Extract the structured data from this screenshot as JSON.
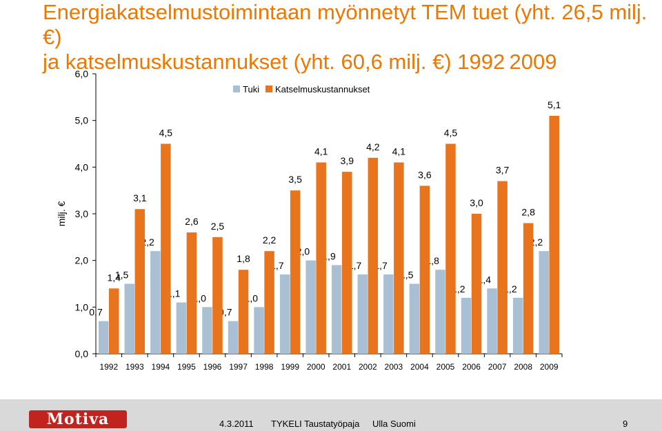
{
  "title_line1": "Energiakatselmustoimintaan myönnetyt TEM tuet (yht. 26,5 milj. €)",
  "title_line2": "ja katselmuskustannukset (yht. 60,6 milj. €) 1992 2009",
  "footer": {
    "logo": "Motiva",
    "date": "4.3.2011",
    "event": "TYKELI Taustatyöpaja",
    "author": "Ulla Suomi",
    "page": "9"
  },
  "colors": {
    "tuki": "#a9bfd4",
    "katselmus": "#e8741e",
    "title": "#ee7700"
  },
  "chart_data": {
    "type": "bar",
    "categories": [
      "1992",
      "1993",
      "1994",
      "1995",
      "1996",
      "1997",
      "1998",
      "1999",
      "2000",
      "2001",
      "2002",
      "2003",
      "2004",
      "2005",
      "2006",
      "2007",
      "2008",
      "2009"
    ],
    "series": [
      {
        "name": "Tuki",
        "values": [
          0.7,
          1.5,
          2.2,
          1.1,
          1.0,
          0.7,
          1.0,
          1.7,
          2.0,
          1.9,
          1.7,
          1.7,
          1.5,
          1.8,
          1.2,
          1.4,
          1.2,
          2.2
        ],
        "labels": [
          "0,7",
          "1,5",
          "2,2",
          "1,1",
          "1,0",
          "0,7",
          "1,0",
          "1,7",
          "2,0",
          "1,9",
          "1,7",
          "1,7",
          "1,5",
          "1,8",
          "1,2",
          "1,4",
          "1,2",
          "2,2"
        ]
      },
      {
        "name": "Katselmuskustannukset",
        "values": [
          1.4,
          3.1,
          4.5,
          2.6,
          2.5,
          1.8,
          2.2,
          3.5,
          4.1,
          3.9,
          4.2,
          4.1,
          3.6,
          4.5,
          3.0,
          3.7,
          2.8,
          5.1
        ],
        "labels": [
          "1,4",
          "3,1",
          "4,5",
          "2,6",
          "2,5",
          "1,8",
          "2,2",
          "3,5",
          "4,1",
          "3,9",
          "4,2",
          "4,1",
          "3,6",
          "4,5",
          "3,0",
          "3,7",
          "2,8",
          "5,1"
        ]
      }
    ],
    "ylabel": "milj. €",
    "ylim": [
      0,
      6
    ],
    "yticks": [
      "0,0",
      "1,0",
      "2,0",
      "3,0",
      "4,0",
      "5,0",
      "6,0"
    ],
    "legend": "top",
    "grid": false
  }
}
